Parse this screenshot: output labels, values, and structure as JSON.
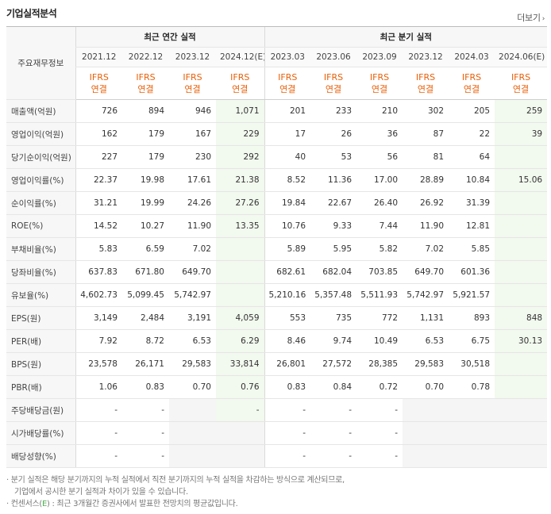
{
  "header": {
    "title": "기업실적분석",
    "more_label": "더보기"
  },
  "table": {
    "corner_label": "주요재무정보",
    "group_annual": "최근 연간 실적",
    "group_quarter": "최근 분기 실적",
    "periods": [
      "2021.12",
      "2022.12",
      "2023.12",
      "2024.12(E)",
      "2023.03",
      "2023.06",
      "2023.09",
      "2023.12",
      "2024.03",
      "2024.06(E)"
    ],
    "standard_top": "IFRS",
    "standard_bottom": "연결",
    "rows": [
      {
        "label": "매출액(억원)",
        "values": [
          "726",
          "894",
          "946",
          "1,071",
          "201",
          "233",
          "210",
          "302",
          "205",
          "259"
        ]
      },
      {
        "label": "영업이익(억원)",
        "values": [
          "162",
          "179",
          "167",
          "229",
          "17",
          "26",
          "36",
          "87",
          "22",
          "39"
        ]
      },
      {
        "label": "당기순이익(억원)",
        "values": [
          "227",
          "179",
          "230",
          "292",
          "40",
          "53",
          "56",
          "81",
          "64",
          ""
        ]
      },
      {
        "label": "영업이익률(%)",
        "values": [
          "22.37",
          "19.98",
          "17.61",
          "21.38",
          "8.52",
          "11.36",
          "17.00",
          "28.89",
          "10.84",
          "15.06"
        ]
      },
      {
        "label": "순이익률(%)",
        "values": [
          "31.21",
          "19.99",
          "24.26",
          "27.26",
          "19.84",
          "22.67",
          "26.40",
          "26.92",
          "31.39",
          ""
        ]
      },
      {
        "label": "ROE(%)",
        "values": [
          "14.52",
          "10.27",
          "11.90",
          "13.35",
          "10.76",
          "9.33",
          "7.44",
          "11.90",
          "12.81",
          ""
        ]
      },
      {
        "label": "부채비율(%)",
        "values": [
          "5.83",
          "6.59",
          "7.02",
          "",
          "5.89",
          "5.95",
          "5.82",
          "7.02",
          "5.85",
          ""
        ]
      },
      {
        "label": "당좌비율(%)",
        "values": [
          "637.83",
          "671.80",
          "649.70",
          "",
          "682.61",
          "682.04",
          "703.85",
          "649.70",
          "601.36",
          ""
        ]
      },
      {
        "label": "유보율(%)",
        "values": [
          "4,602.73",
          "5,099.45",
          "5,742.97",
          "",
          "5,210.16",
          "5,357.48",
          "5,511.93",
          "5,742.97",
          "5,921.57",
          ""
        ]
      },
      {
        "label": "EPS(원)",
        "values": [
          "3,149",
          "2,484",
          "3,191",
          "4,059",
          "553",
          "735",
          "772",
          "1,131",
          "893",
          "848"
        ]
      },
      {
        "label": "PER(배)",
        "values": [
          "7.92",
          "8.72",
          "6.53",
          "6.29",
          "8.46",
          "9.74",
          "10.49",
          "6.53",
          "6.75",
          "30.13"
        ]
      },
      {
        "label": "BPS(원)",
        "values": [
          "23,578",
          "26,171",
          "29,583",
          "33,814",
          "26,801",
          "27,572",
          "28,385",
          "29,583",
          "30,518",
          ""
        ]
      },
      {
        "label": "PBR(배)",
        "values": [
          "1.06",
          "0.83",
          "0.70",
          "0.76",
          "0.83",
          "0.84",
          "0.72",
          "0.70",
          "0.78",
          ""
        ]
      },
      {
        "label": "주당배당금(원)",
        "values": [
          "-",
          "-",
          "",
          "-",
          "-",
          "-",
          "-",
          "",
          "",
          ""
        ]
      },
      {
        "label": "시가배당률(%)",
        "values": [
          "-",
          "-",
          "",
          "",
          "-",
          "-",
          "-",
          "",
          "",
          ""
        ]
      },
      {
        "label": "배당성향(%)",
        "values": [
          "-",
          "-",
          "",
          "",
          "-",
          "-",
          "-",
          "",
          "",
          ""
        ]
      }
    ]
  },
  "notes": {
    "line1": "분기 실적은 해당 분기까지의 누적 실적에서 직전 분기까지의 누적 실적을 차감하는 방식으로 계산되므로,",
    "line2": "기업에서 공시한 분기 실적과 차이가 있을 수 있습니다.",
    "line3_prefix": "컨센서스(",
    "line3_e": "E",
    "line3_suffix": ") : 최근 3개월간 증권사에서 발표한 전망치의 평균값입니다."
  }
}
